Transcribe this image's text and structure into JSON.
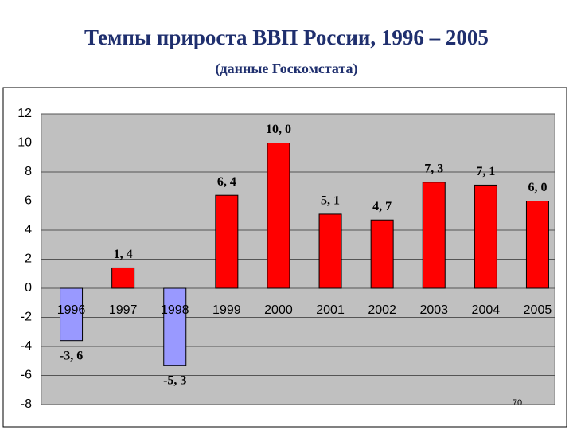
{
  "chart_data": {
    "type": "bar",
    "title": "Темпы прироста ВВП России, 1996 – 2005",
    "subtitle": "(данные Госкомстата)",
    "categories": [
      "1996",
      "1997",
      "1998",
      "1999",
      "2000",
      "2001",
      "2002",
      "2003",
      "2004",
      "2005"
    ],
    "values": [
      -3.6,
      1.4,
      -5.3,
      6.4,
      10.0,
      5.1,
      4.7,
      7.3,
      7.1,
      6.0
    ],
    "value_labels": [
      "-3, 6",
      "1, 4",
      "-5, 3",
      "6, 4",
      "10, 0",
      "5, 1",
      "4, 7",
      "7, 3",
      "7, 1",
      "6, 0"
    ],
    "colors": [
      "#9999ff",
      "#ff0000",
      "#9999ff",
      "#ff0000",
      "#ff0000",
      "#ff0000",
      "#ff0000",
      "#ff0000",
      "#ff0000",
      "#ff0000"
    ],
    "ylim": [
      -8,
      12
    ],
    "yticks": [
      -8,
      -6,
      -4,
      -2,
      0,
      2,
      4,
      6,
      8,
      10,
      12
    ],
    "grid": true
  },
  "page_number": "70"
}
